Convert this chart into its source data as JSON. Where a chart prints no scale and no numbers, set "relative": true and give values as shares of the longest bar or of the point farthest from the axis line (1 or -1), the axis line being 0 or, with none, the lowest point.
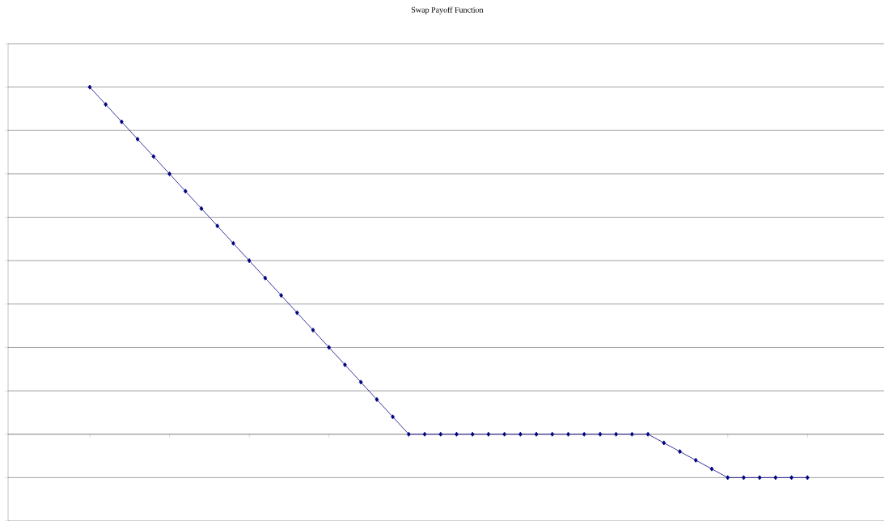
{
  "chart_data": {
    "type": "line",
    "title": "Swap Payoff Function",
    "relative": true,
    "grid": "y",
    "marker": "diamond",
    "line_style": "solid",
    "categories": [
      null,
      null,
      null,
      null,
      null,
      null,
      null,
      null,
      null,
      null,
      null,
      null,
      null,
      null,
      null,
      null,
      null,
      null,
      null,
      null,
      null,
      null,
      null,
      null,
      null,
      null,
      null,
      null,
      null,
      null,
      null,
      null,
      null,
      null,
      null,
      null,
      null,
      null,
      null,
      null,
      null,
      null,
      null,
      null,
      null,
      null
    ],
    "series": [
      {
        "color": "#000080",
        "values": [
          1,
          0.95,
          0.9,
          0.85,
          0.8,
          0.75,
          0.7,
          0.65,
          0.6,
          0.55,
          0.5,
          0.45,
          0.4,
          0.35,
          0.3,
          0.25,
          0.2,
          0.15,
          0.1,
          0.05,
          0,
          0,
          0,
          0,
          0,
          0,
          0,
          0,
          0,
          0,
          0,
          0,
          0,
          0,
          0,
          0,
          -0.025,
          -0.05,
          -0.075,
          -0.1,
          -0.125,
          -0.125,
          -0.125,
          -0.125,
          -0.125,
          -0.125
        ]
      }
    ]
  }
}
